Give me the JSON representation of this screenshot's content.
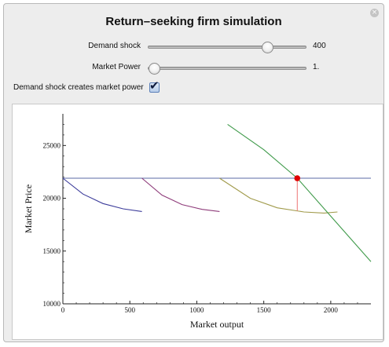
{
  "window": {
    "title": "Return–seeking firm simulation",
    "close_glyph": "×",
    "close_icon": "close-icon"
  },
  "controls": {
    "demand_shock": {
      "label": "Demand shock",
      "value_text": "400",
      "fraction": 0.77
    },
    "market_power": {
      "label": "Market Power",
      "value_text": "1.",
      "fraction": 0.0
    },
    "checkbox": {
      "label": "Demand shock creates market power",
      "checked": true,
      "check_glyph": "✔"
    }
  },
  "chart_data": {
    "type": "line",
    "xlabel": "Market output",
    "ylabel": "Market Price",
    "xlim": [
      0,
      2300
    ],
    "ylim": [
      10000,
      28000
    ],
    "xticks": [
      0,
      500,
      1000,
      1500,
      2000
    ],
    "yticks": [
      10000,
      15000,
      20000,
      25000
    ],
    "series": [
      {
        "color": "#5b6aa5",
        "x": [
          0,
          2300
        ],
        "y": [
          21900,
          21900
        ]
      },
      {
        "color": "#3b3b9a",
        "x": [
          0,
          150,
          300,
          450,
          590
        ],
        "y": [
          21900,
          20400,
          19500,
          19000,
          18750
        ]
      },
      {
        "color": "#8e3b7a",
        "x": [
          590,
          740,
          890,
          1040,
          1170
        ],
        "y": [
          21900,
          20300,
          19400,
          18950,
          18750
        ]
      },
      {
        "color": "#a09a4a",
        "x": [
          1170,
          1400,
          1600,
          1800,
          1950,
          2050
        ],
        "y": [
          21900,
          20000,
          19100,
          18700,
          18600,
          18700
        ]
      },
      {
        "color": "#3f9a4a",
        "x": [
          1230,
          1500,
          1750,
          2000,
          2300
        ],
        "y": [
          27000,
          24600,
          21900,
          18300,
          14000
        ]
      },
      {
        "color": "#f08080",
        "x": [
          1750,
          1750
        ],
        "y": [
          21900,
          18800
        ]
      }
    ],
    "equilibrium_point": {
      "x": 1750,
      "y": 21900,
      "color": "#e00000"
    }
  }
}
